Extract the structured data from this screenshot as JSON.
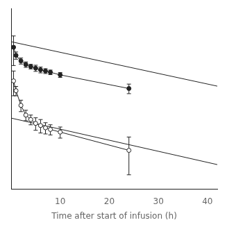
{
  "chart_data": {
    "type": "line",
    "xlabel": "Time after start of infusion (h)",
    "xlim": [
      0,
      42
    ],
    "xticks": [
      10,
      20,
      30,
      40
    ],
    "ylim": [
      0.05,
      20
    ],
    "log": "y",
    "grid": false,
    "tick_labels": "x",
    "series": [
      {
        "color": "#222222",
        "marker": "none",
        "x": [
          0.0,
          42.0
        ],
        "values": [
          6.60693448,
          1.51356125
        ]
      },
      {
        "color": "#222222",
        "marker": "none",
        "x": [
          0.0,
          42.0
        ],
        "values": [
          0.52480746,
          0.11220185
        ]
      },
      {
        "color": "#222222",
        "marker": "circle",
        "x": [
          0.5,
          1.0,
          2.0,
          3.0,
          4.0,
          5.0,
          6.0,
          7.0,
          8.0,
          10.0,
          24.0
        ],
        "values": [
          5.5,
          4.2,
          3.5,
          3.1,
          2.9,
          2.75,
          2.6,
          2.5,
          2.4,
          2.2,
          1.4
        ],
        "errors": [
          2.5,
          0.5,
          0.35,
          0.28,
          0.22,
          0.28,
          0.25,
          0.2,
          0.18,
          0.18,
          0.22
        ]
      },
      {
        "color": "#222222",
        "marker": "circle-open",
        "x": [
          0.5,
          1.0,
          2.0,
          3.0,
          4.0,
          5.0,
          6.0,
          7.0,
          8.0,
          10.0,
          24.0
        ],
        "values": [
          1.8,
          1.3,
          0.8,
          0.58,
          0.5,
          0.44,
          0.41,
          0.38,
          0.36,
          0.33,
          0.18
        ],
        "errors": [
          0.7,
          0.2,
          0.15,
          0.1,
          0.08,
          0.09,
          0.09,
          0.07,
          0.06,
          0.06,
          0.1
        ]
      }
    ]
  }
}
